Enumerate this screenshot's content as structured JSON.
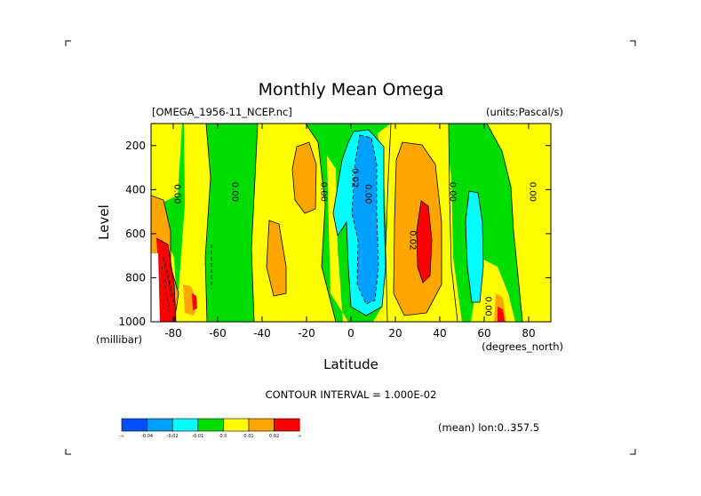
{
  "chart_data": {
    "type": "heatmap",
    "title": "Monthly Mean Omega",
    "dataset_label": "[OMEGA_1956-11_NCEP.nc]",
    "units_label": "(units:Pascal/s)",
    "xlabel": "Latitude",
    "x_units": "(degrees_north)",
    "ylabel": "Level",
    "y_units": "(millibar)",
    "xlim": [
      -90,
      90
    ],
    "ylim": [
      1000,
      100
    ],
    "y_reversed": true,
    "x_ticks": [
      -80,
      -60,
      -40,
      -20,
      0,
      20,
      40,
      60,
      80
    ],
    "y_ticks": [
      200,
      400,
      600,
      800,
      1000
    ],
    "contour_interval_text": "CONTOUR INTERVAL = 1.000E-02",
    "mean_note": "(mean) lon:0..357.5",
    "colorbar": {
      "colors": [
        "#0050ff",
        "#00a0ff",
        "#00ffff",
        "#00dd00",
        "#ffff00",
        "#ffa500",
        "#ff0000"
      ],
      "labels": [
        "-∞",
        "-0.04",
        "-0.02",
        "-0.01",
        "0.0",
        "0.01",
        "0.02",
        "∞"
      ]
    },
    "contour_labels": [
      {
        "lat": -78,
        "lev": 420,
        "text": "0.00"
      },
      {
        "lat": -52,
        "lev": 410,
        "text": "0.00"
      },
      {
        "lat": -12,
        "lev": 410,
        "text": "0.00"
      },
      {
        "lat": 2,
        "lev": 340,
        "text": "-0.02"
      },
      {
        "lat": 8,
        "lev": 420,
        "text": "0.00"
      },
      {
        "lat": 28,
        "lev": 630,
        "text": "0.02"
      },
      {
        "lat": 46,
        "lev": 410,
        "text": "0.00"
      },
      {
        "lat": 62,
        "lev": 930,
        "text": "0.00"
      },
      {
        "lat": 82,
        "lev": 410,
        "text": "0.00"
      }
    ],
    "regions": [
      {
        "level": "green",
        "value_range": "-0.01..0.0",
        "lat": [
          -90,
          90
        ],
        "lev": [
          100,
          1000
        ],
        "note": "background"
      },
      {
        "level": "yellow",
        "value_range": "0.0..0.01",
        "lat": [
          -76,
          -58
        ],
        "lev": [
          100,
          1000
        ]
      },
      {
        "level": "yellow",
        "value_range": "0.0..0.01",
        "lat": [
          -42,
          -8
        ],
        "lev": [
          100,
          1000
        ]
      },
      {
        "level": "yellow",
        "value_range": "0.0..0.01",
        "lat": [
          18,
          48
        ],
        "lev": [
          100,
          1000
        ]
      },
      {
        "level": "yellow",
        "value_range": "0.0..0.01",
        "lat": [
          68,
          90
        ],
        "lev": [
          100,
          1000
        ]
      },
      {
        "level": "orange",
        "value_range": "0.01..0.02",
        "lat": [
          -30,
          -20
        ],
        "lev": [
          220,
          620
        ]
      },
      {
        "level": "orange",
        "value_range": "0.01..0.02",
        "lat": [
          -40,
          -32
        ],
        "lev": [
          560,
          940
        ]
      },
      {
        "level": "orange",
        "value_range": "0.01..0.02",
        "lat": [
          22,
          44
        ],
        "lev": [
          180,
          970
        ]
      },
      {
        "level": "orange",
        "value_range": "0.01..0.02",
        "lat": [
          -90,
          -80
        ],
        "lev": [
          400,
          1000
        ]
      },
      {
        "level": "red",
        "value_range": ">0.02",
        "lat": [
          28,
          36
        ],
        "lev": [
          460,
          900
        ]
      },
      {
        "level": "red",
        "value_range": ">0.02",
        "lat": [
          -88,
          -83
        ],
        "lev": [
          600,
          1000
        ]
      },
      {
        "level": "cyan",
        "value_range": "-0.02..-0.01",
        "lat": [
          -6,
          16
        ],
        "lev": [
          140,
          990
        ]
      },
      {
        "level": "lightblue",
        "value_range": "-0.04..-0.02",
        "lat": [
          0,
          12
        ],
        "lev": [
          180,
          950
        ]
      },
      {
        "level": "cyan",
        "value_range": "-0.02..-0.01",
        "lat": [
          50,
          58
        ],
        "lev": [
          400,
          960
        ]
      }
    ]
  }
}
